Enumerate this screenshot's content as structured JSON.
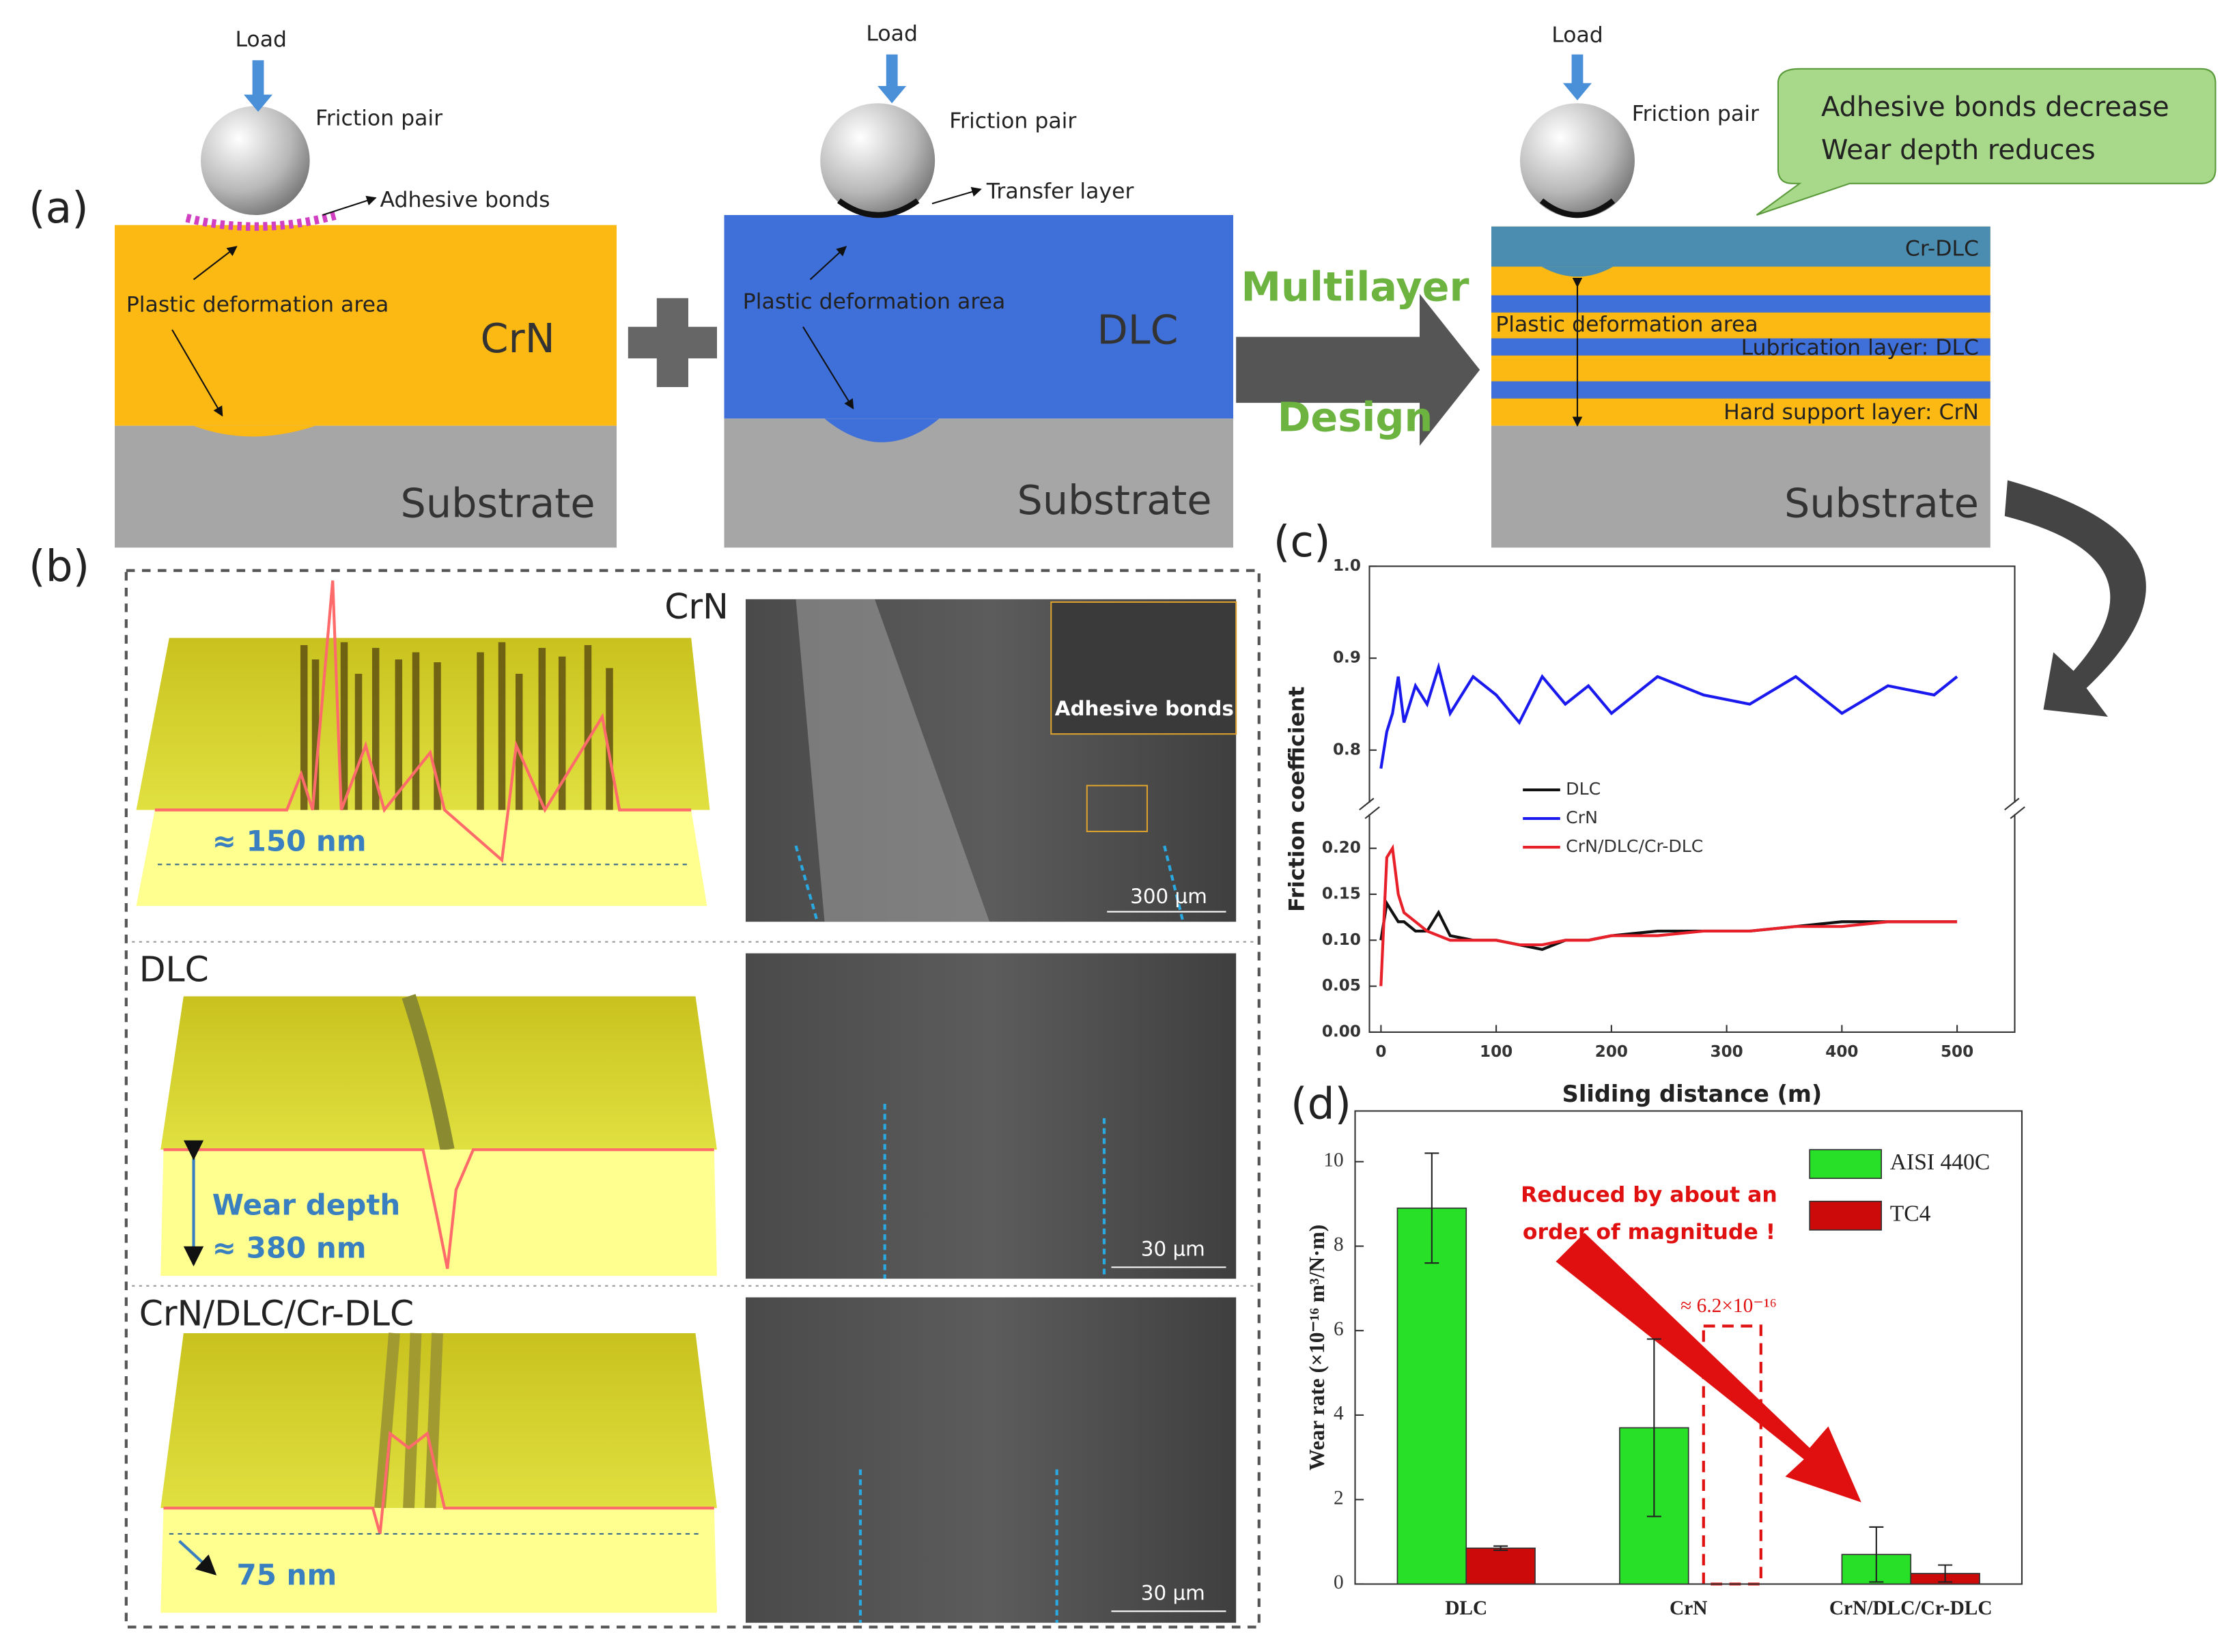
{
  "figure": {
    "panel_labels": [
      "(a)",
      "(b)",
      "(c)",
      "(d)"
    ],
    "schematic_crn": {
      "load": "Load",
      "friction_pair": "Friction pair",
      "bond": "Adhesive bonds",
      "deformation": "Plastic deformation area",
      "coating": "CrN",
      "substrate": "Substrate"
    },
    "schematic_dlc": {
      "load": "Load",
      "friction_pair": "Friction pair",
      "bond": "Transfer layer",
      "deformation": "Plastic deformation area",
      "coating": "DLC",
      "substrate": "Substrate"
    },
    "design_arrow": [
      "Multilayer",
      "Design"
    ],
    "schematic_multilayer": {
      "load": "Load",
      "friction_pair": "Friction pair",
      "top_layer": "Cr-DLC",
      "deformation": "Plastic deformation area",
      "lubrication_layer": "Lubrication layer: DLC",
      "support_layer": "Hard support layer: CrN",
      "substrate": "Substrate",
      "callout": [
        "Adhesive bonds decrease",
        "Wear depth reduces"
      ]
    },
    "profiles": [
      {
        "coating": "CrN",
        "depth": "≈ 150 nm",
        "scale_bar": "300 μm",
        "inset": "Adhesive bonds"
      },
      {
        "coating": "DLC",
        "depth_title": "Wear depth",
        "depth": "≈ 380 nm",
        "scale_bar": "30 μm"
      },
      {
        "coating": "CrN/DLC/Cr-DLC",
        "depth": "75 nm",
        "scale_bar": "30 μm"
      }
    ]
  },
  "chart_data": [
    {
      "type": "line",
      "x_label": "Sliding distance (m)",
      "y_label": "Friction coefficient",
      "x": [
        0,
        5,
        10,
        15,
        20,
        30,
        40,
        50,
        60,
        80,
        100,
        120,
        140,
        160,
        180,
        200,
        240,
        280,
        320,
        360,
        400,
        440,
        480,
        500
      ],
      "series": [
        {
          "name": "DLC",
          "color": "#111111",
          "values": [
            0.1,
            0.14,
            0.13,
            0.12,
            0.12,
            0.11,
            0.11,
            0.13,
            0.105,
            0.1,
            0.1,
            0.095,
            0.09,
            0.1,
            0.1,
            0.105,
            0.11,
            0.11,
            0.11,
            0.115,
            0.12,
            0.12,
            0.12,
            0.12
          ]
        },
        {
          "name": "CrN",
          "color": "#1a1aee",
          "values": [
            0.78,
            0.82,
            0.84,
            0.88,
            0.83,
            0.87,
            0.85,
            0.89,
            0.84,
            0.88,
            0.86,
            0.83,
            0.88,
            0.85,
            0.87,
            0.84,
            0.88,
            0.86,
            0.85,
            0.88,
            0.84,
            0.87,
            0.86,
            0.88
          ]
        },
        {
          "name": "CrN/DLC/Cr-DLC",
          "color": "#e8202a",
          "values": [
            0.05,
            0.19,
            0.2,
            0.15,
            0.13,
            0.12,
            0.11,
            0.105,
            0.1,
            0.1,
            0.1,
            0.095,
            0.095,
            0.1,
            0.1,
            0.105,
            0.105,
            0.11,
            0.11,
            0.115,
            0.115,
            0.12,
            0.12,
            0.12
          ]
        }
      ],
      "xlim": [
        -10,
        550
      ],
      "xticks": [
        0,
        100,
        200,
        300,
        400,
        500
      ],
      "ylim": [
        0,
        1.0
      ],
      "ybreak": [
        0.22,
        0.76
      ],
      "yticks": [
        {
          "value": 0,
          "label": "0.00"
        },
        0.05,
        {
          "value": 0.1,
          "label": "0.10"
        },
        0.15,
        {
          "value": 0.2,
          "label": "0.20"
        },
        0.8,
        0.9,
        {
          "value": 1,
          "label": "1.0"
        }
      ],
      "legend": "center"
    },
    {
      "type": "bar",
      "y_label": "Wear rate (×10⁻¹⁶ m³/N·m)",
      "categories": [
        "DLC",
        "CrN",
        "CrN/DLC/Cr-DLC"
      ],
      "series": [
        {
          "name": "AISI 440C",
          "color": "#27e027",
          "values": [
            8.9,
            3.7,
            0.7
          ],
          "errors": [
            1.3,
            2.1,
            0.65
          ]
        },
        {
          "name": "TC4",
          "color": "#cc0a0a",
          "values": [
            0.85,
            null,
            0.25
          ],
          "errors": [
            0.05,
            null,
            0.2
          ]
        }
      ],
      "ylim": [
        0,
        11.2
      ],
      "yticks": [
        0,
        2,
        4,
        6,
        8,
        10
      ],
      "annotation_lines": [
        "Reduced by about an",
        "order of magnitude !"
      ],
      "difference_label": "≈ 6.2×10⁻¹⁶",
      "legend": "upper right"
    }
  ]
}
